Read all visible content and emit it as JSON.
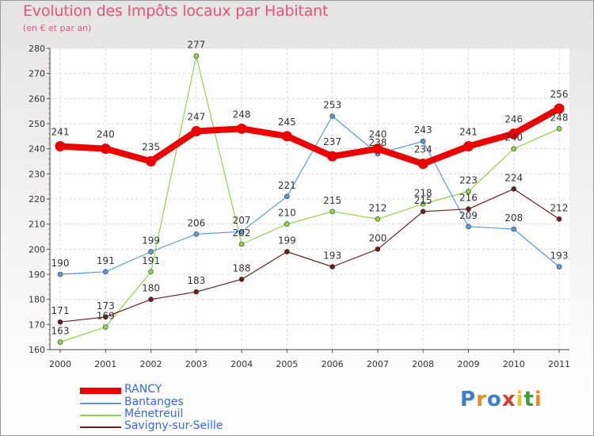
{
  "chart_data": {
    "type": "line",
    "title": "Evolution des Impôts locaux par Habitant",
    "subtitle": "(en € et par an)",
    "categories": [
      "2000",
      "2001",
      "2002",
      "2003",
      "2004",
      "2005",
      "2006",
      "2007",
      "2008",
      "2009",
      "2010",
      "2011"
    ],
    "ylim": [
      160,
      280
    ],
    "yticks": [
      160,
      170,
      180,
      190,
      200,
      210,
      220,
      230,
      240,
      250,
      260,
      270,
      280
    ],
    "grid": true,
    "legend_position": "bottom-left",
    "series": [
      {
        "name": "RANCY",
        "color": "#ee0000",
        "values": [
          241,
          240,
          235,
          247,
          248,
          245,
          237,
          240,
          234,
          241,
          246,
          256
        ]
      },
      {
        "name": "Bantanges",
        "color": "#5b9bd5",
        "values": [
          190,
          191,
          199,
          206,
          207,
          221,
          253,
          238,
          243,
          209,
          208,
          193
        ]
      },
      {
        "name": "Ménetreuil",
        "color": "#8fd34a",
        "values": [
          163,
          169,
          191,
          277,
          202,
          210,
          215,
          212,
          218,
          223,
          240,
          248
        ]
      },
      {
        "name": "Savigny-sur-Seille",
        "color": "#6a1f1f",
        "values": [
          171,
          173,
          180,
          183,
          188,
          199,
          193,
          200,
          215,
          216,
          224,
          212
        ]
      }
    ]
  },
  "logo": {
    "letters": [
      "P",
      "r",
      "o",
      "x",
      "i",
      "t",
      "i"
    ],
    "colors": [
      "#3a7fd0",
      "#f08a1a",
      "#3a7fd0",
      "#e03a2a",
      "#f0c020",
      "#3aa040",
      "#f08a1a"
    ]
  }
}
